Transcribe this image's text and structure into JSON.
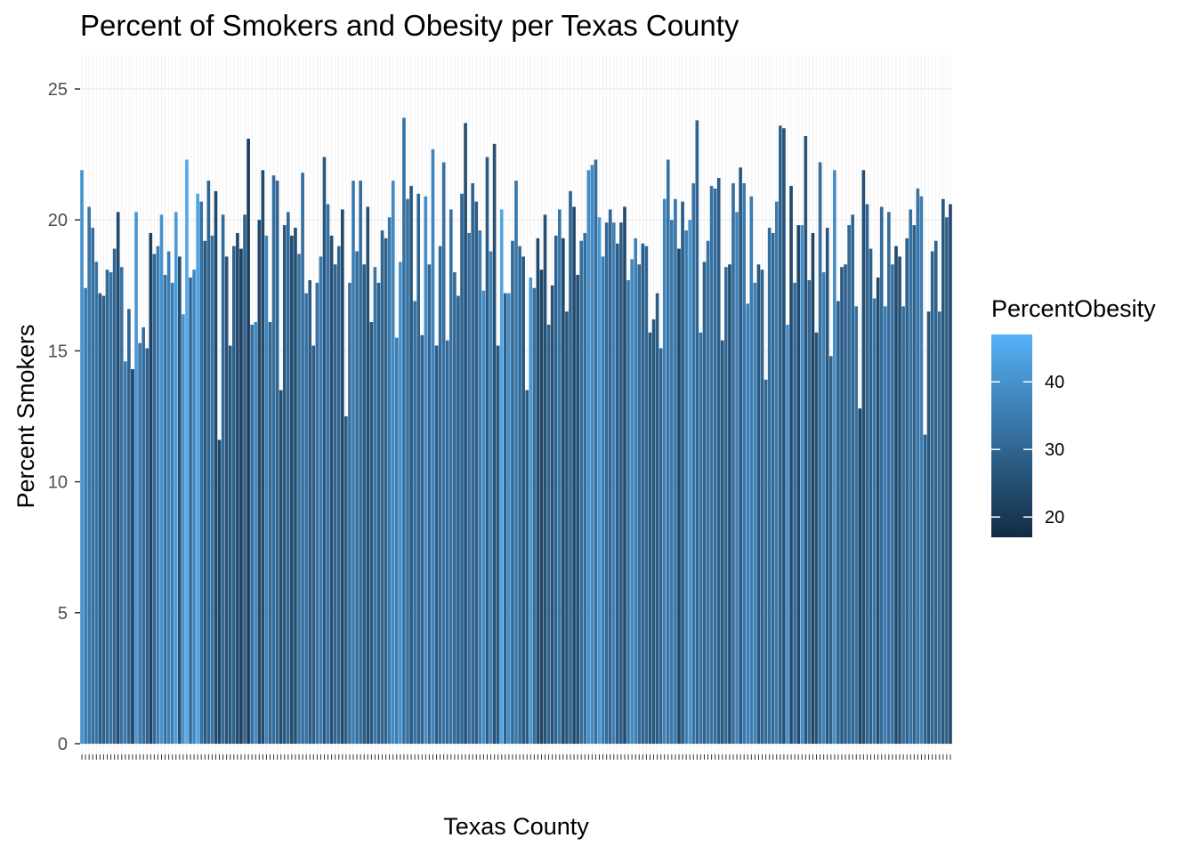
{
  "chart_data": {
    "type": "bar",
    "title": "Percent of Smokers and Obesity per Texas County",
    "xlabel": "Texas County",
    "ylabel": "Percent Smokers",
    "ylim": [
      0,
      26
    ],
    "y_ticks": [
      0,
      5,
      10,
      15,
      20,
      25
    ],
    "grid": true,
    "legend": {
      "title": "PercentObesity",
      "position": "right",
      "type": "colorbar",
      "ticks": [
        20,
        30,
        40
      ],
      "range": [
        17,
        47
      ],
      "low_color": "#132B43",
      "high_color": "#56B1F7"
    },
    "colors": {
      "low": "#132B43",
      "high": "#56B1F7",
      "panel_bg": "#ffffff",
      "grid": "#ebebeb"
    },
    "series": [
      {
        "values": [
          21.9,
          17.4,
          20.5,
          19.7,
          18.4,
          17.2,
          17.1,
          18.1,
          18.0,
          18.9,
          20.3,
          18.2,
          14.6,
          16.6,
          14.3,
          20.3,
          15.3,
          15.9,
          15.1,
          19.5,
          18.7,
          19.0,
          20.2,
          17.9,
          18.8,
          17.6,
          20.3,
          18.6,
          16.4,
          22.3,
          17.8,
          18.1,
          21.0,
          20.7,
          19.2,
          21.5,
          19.4,
          21.1,
          11.6,
          20.2,
          18.6,
          15.2,
          19.0,
          19.5,
          18.9,
          20.2,
          23.1,
          16.0,
          16.1,
          20.0,
          21.9,
          19.4,
          16.1,
          21.7,
          21.5,
          13.5,
          19.8,
          20.3,
          19.4,
          19.7,
          18.7,
          21.8,
          17.2,
          17.7,
          15.2,
          17.6,
          18.6,
          22.4,
          20.6,
          19.4,
          18.3,
          19.0,
          20.4,
          12.5,
          17.6,
          21.5,
          18.8,
          21.5,
          18.3,
          20.5,
          16.1,
          18.2,
          17.6,
          19.6,
          19.3,
          20.1,
          21.5,
          15.5,
          18.4,
          23.9,
          20.8,
          21.3,
          16.9,
          21.0,
          15.6,
          20.9,
          18.3,
          22.7,
          15.2,
          19.0,
          22.2,
          15.4,
          20.4,
          18.0,
          17.1,
          21.0,
          23.7,
          19.5,
          21.4,
          20.7,
          19.6,
          17.3,
          22.4,
          18.8,
          22.9,
          15.2,
          20.4,
          17.2,
          17.2,
          19.2,
          21.5,
          19.0,
          18.6,
          13.5,
          17.8,
          17.4,
          19.3,
          18.1,
          20.2,
          16.0,
          17.5,
          19.4,
          20.4,
          19.3,
          16.5,
          21.1,
          20.5,
          17.9,
          19.2,
          19.5,
          21.9,
          22.1,
          22.3,
          20.1,
          18.6,
          19.9,
          20.4,
          19.9,
          19.1,
          19.9,
          20.5,
          17.7,
          18.5,
          19.3,
          18.3,
          19.1,
          19.0,
          15.7,
          16.2,
          17.2,
          15.1,
          20.8,
          22.3,
          20.0,
          20.8,
          18.9,
          20.7,
          19.6,
          20.0,
          21.4,
          23.8,
          15.7,
          18.4,
          19.2,
          21.3,
          21.2,
          21.6,
          15.4,
          18.2,
          18.3,
          21.4,
          20.3,
          22.0,
          21.4,
          16.8,
          20.9,
          17.6,
          18.3,
          18.1,
          13.9,
          19.7,
          19.5,
          20.7,
          23.6,
          23.5,
          16.0,
          21.3,
          17.6,
          19.8,
          19.8,
          23.2,
          17.7,
          19.5,
          15.7,
          22.2,
          18.0,
          19.7,
          14.8,
          21.9,
          16.9,
          18.2,
          18.3,
          19.8,
          20.2,
          16.7,
          12.8,
          21.9,
          20.6,
          18.9,
          17.0,
          17.8,
          20.5,
          16.7,
          20.3,
          18.3,
          19.0,
          18.6,
          16.7,
          19.3,
          20.4,
          19.8,
          21.2,
          20.9,
          11.8,
          16.5,
          18.8,
          19.2,
          16.5,
          20.8,
          20.1,
          20.6
        ],
        "colors": [
          40,
          35,
          34,
          32,
          33,
          28,
          29,
          31,
          33,
          30,
          24,
          33,
          35,
          30,
          22,
          41,
          34,
          32,
          29,
          22,
          31,
          36,
          40,
          33,
          36,
          35,
          42,
          25,
          40,
          45,
          31,
          38,
          44,
          32,
          27,
          30,
          33,
          24,
          23,
          31,
          26,
          27,
          29,
          24,
          21,
          30,
          21,
          32,
          38,
          24,
          24,
          37,
          30,
          32,
          30,
          24,
          27,
          31,
          24,
          25,
          34,
          32,
          33,
          28,
          28,
          33,
          35,
          27,
          33,
          25,
          30,
          30,
          24,
          28,
          33,
          35,
          32,
          32,
          28,
          25,
          27,
          34,
          29,
          30,
          29,
          34,
          38,
          35,
          40,
          33,
          33,
          27,
          33,
          30,
          29,
          39,
          31,
          37,
          28,
          31,
          33,
          31,
          33,
          31,
          29,
          30,
          25,
          33,
          30,
          28,
          35,
          39,
          28,
          37,
          25,
          28,
          44,
          29,
          39,
          31,
          34,
          31,
          27,
          28,
          41,
          32,
          24,
          23,
          25,
          30,
          26,
          29,
          34,
          24,
          27,
          30,
          24,
          25,
          32,
          32,
          39,
          38,
          32,
          41,
          35,
          31,
          30,
          36,
          28,
          28,
          24,
          35,
          38,
          36,
          31,
          29,
          30,
          27,
          27,
          28,
          30,
          37,
          33,
          34,
          34,
          23,
          28,
          36,
          40,
          33,
          30,
          33,
          30,
          33,
          33,
          32,
          28,
          27,
          31,
          25,
          32,
          37,
          27,
          35,
          36,
          35,
          36,
          27,
          30,
          31,
          32,
          31,
          35,
          29,
          26,
          40,
          24,
          32,
          24,
          39,
          26,
          31,
          23,
          26,
          32,
          36,
          27,
          29,
          39,
          29,
          28,
          29,
          31,
          30,
          33,
          22,
          25,
          30,
          29,
          34,
          24,
          31,
          35,
          32,
          33,
          24,
          25,
          32,
          30,
          33,
          29,
          33,
          36,
          29,
          27,
          30,
          29,
          31,
          27,
          29,
          24,
          31,
          29,
          30,
          34,
          34,
          30,
          28,
          34
        ]
      }
    ]
  }
}
